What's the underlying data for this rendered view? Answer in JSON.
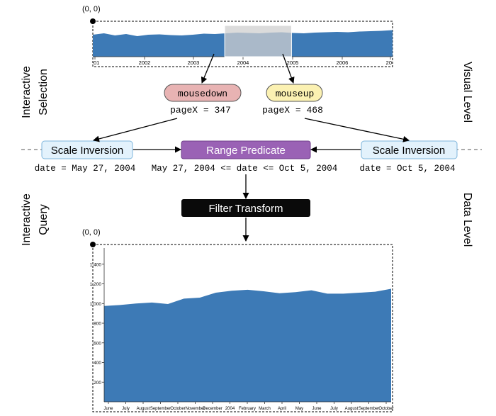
{
  "colors": {
    "area_fill": "#3d7ab6",
    "scale_box_fill": "#e3f2fc",
    "scale_box_stroke": "#7fb6dc",
    "predicate_fill": "#9a62b5",
    "filter_fill": "#0a0a0a",
    "mousedown_fill": "#e8b3b3",
    "mouseup_fill": "#fbf1b2",
    "brush_fill": "#cfcfcf"
  },
  "side_labels": {
    "left_top_1": "Interactive",
    "left_top_2": "Selection",
    "left_bottom_1": "Interactive",
    "left_bottom_2": "Query",
    "right_top": "Visual Level",
    "right_bottom": "Data Level"
  },
  "overview": {
    "origin_label": "(0, 0)",
    "ticks": [
      "01",
      "2002",
      "2003",
      "2004",
      "2005",
      "2006",
      "20"
    ],
    "area_values": [
      0.62,
      0.66,
      0.6,
      0.64,
      0.58,
      0.62,
      0.63,
      0.61,
      0.6,
      0.62,
      0.65,
      0.64,
      0.66,
      0.68,
      0.67,
      0.66,
      0.68,
      0.69,
      0.67,
      0.66,
      0.68,
      0.69,
      0.7,
      0.69,
      0.71,
      0.72,
      0.73,
      0.75
    ],
    "brush_range": [
      0.44,
      0.663
    ]
  },
  "events": {
    "mousedown_label": "mousedown",
    "mousedown_value": "pageX = 347",
    "mouseup_label": "mouseup",
    "mouseup_value": "pageX = 468"
  },
  "nodes": {
    "scale_inversion_left": "Scale Inversion",
    "scale_inversion_left_value": "date = May 27, 2004",
    "range_predicate": "Range Predicate",
    "range_predicate_value": "May 27, 2004 <= date <= Oct 5, 2004",
    "scale_inversion_right": "Scale Inversion",
    "scale_inversion_right_value": "date = Oct 5, 2004",
    "filter_transform": "Filter Transform"
  },
  "detail": {
    "origin_label": "(0, 0)",
    "y_ticks": [
      "1,400",
      "1,200",
      "1,000",
      "800",
      "600",
      "400",
      "200"
    ],
    "y_tick_values": [
      1400,
      1200,
      1000,
      800,
      600,
      400,
      200
    ],
    "y_max": 1550,
    "x_ticks": [
      "June",
      "July",
      "August",
      "September",
      "October",
      "November",
      "December",
      "2004",
      "February",
      "March",
      "April",
      "May",
      "June",
      "July",
      "August",
      "September",
      "October"
    ],
    "area_values": [
      975,
      985,
      1000,
      1010,
      995,
      1050,
      1060,
      1110,
      1130,
      1140,
      1125,
      1105,
      1115,
      1135,
      1100,
      1100,
      1110,
      1120,
      1150
    ]
  }
}
